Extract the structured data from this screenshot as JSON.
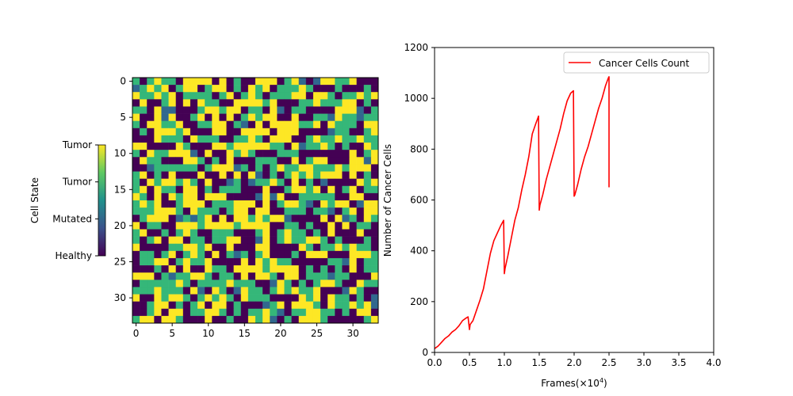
{
  "chart_data": [
    {
      "type": "heatmap",
      "title": "",
      "xlabel": "",
      "ylabel": "",
      "x_ticks": [
        0,
        5,
        10,
        15,
        20,
        25,
        30
      ],
      "y_ticks": [
        0,
        5,
        10,
        15,
        20,
        25,
        30
      ],
      "xlim": [
        -0.5,
        33.5
      ],
      "ylim": [
        33.5,
        -0.5
      ],
      "grid_size": [
        34,
        34
      ],
      "colormap": "viridis",
      "colors": {
        "healthy": "#440154",
        "mutated": "#31688e",
        "low": "#35b779",
        "high": "#fde725"
      },
      "states": [
        "Healthy",
        "Mutated",
        "Tumor",
        "Tumor"
      ],
      "colorbar": {
        "label": "Cell State",
        "tick_labels": [
          "Healthy",
          "Mutated",
          "Tumor",
          "Tumor"
        ]
      },
      "values_note_free": true,
      "mix": {
        "healthy": 0.34,
        "mutated": 0.04,
        "low": 0.3,
        "high": 0.32
      }
    },
    {
      "type": "line",
      "title": "",
      "xlabel": "Frames(×10",
      "xlabel_sup": "4",
      "xlabel_tail": ")",
      "ylabel": "Number of Cancer Cells",
      "xlim": [
        0,
        4
      ],
      "ylim": [
        0,
        1200
      ],
      "x_ticks": [
        "0.0",
        "0.5",
        "1.0",
        "1.5",
        "2.0",
        "2.5",
        "3.0",
        "3.5",
        "4.0"
      ],
      "y_ticks": [
        "0",
        "200",
        "400",
        "600",
        "800",
        "1000",
        "1200"
      ],
      "grid": false,
      "legend": {
        "position": "top-right",
        "entries": [
          "Cancer Cells Count"
        ]
      },
      "series": [
        {
          "name": "Cancer Cells Count",
          "color": "#ff0000",
          "x": [
            0.0,
            0.05,
            0.1,
            0.15,
            0.2,
            0.25,
            0.3,
            0.35,
            0.4,
            0.45,
            0.48,
            0.5,
            0.51,
            0.55,
            0.6,
            0.65,
            0.7,
            0.75,
            0.8,
            0.85,
            0.9,
            0.95,
            0.99,
            1.0,
            1.01,
            1.05,
            1.1,
            1.15,
            1.2,
            1.25,
            1.3,
            1.35,
            1.4,
            1.45,
            1.49,
            1.5,
            1.51,
            1.55,
            1.6,
            1.65,
            1.7,
            1.75,
            1.8,
            1.85,
            1.9,
            1.95,
            1.99,
            2.0,
            2.01,
            2.05,
            2.1,
            2.15,
            2.2,
            2.25,
            2.3,
            2.35,
            2.4,
            2.45,
            2.49,
            2.5,
            2.5
          ],
          "y": [
            15,
            25,
            40,
            55,
            65,
            80,
            90,
            105,
            125,
            135,
            140,
            90,
            110,
            125,
            165,
            205,
            250,
            320,
            390,
            440,
            470,
            500,
            520,
            310,
            330,
            380,
            450,
            520,
            570,
            640,
            700,
            770,
            860,
            900,
            930,
            560,
            580,
            620,
            680,
            730,
            780,
            830,
            880,
            940,
            990,
            1020,
            1030,
            615,
            620,
            660,
            720,
            770,
            810,
            860,
            910,
            960,
            1000,
            1050,
            1080,
            1085,
            650
          ]
        }
      ]
    }
  ]
}
